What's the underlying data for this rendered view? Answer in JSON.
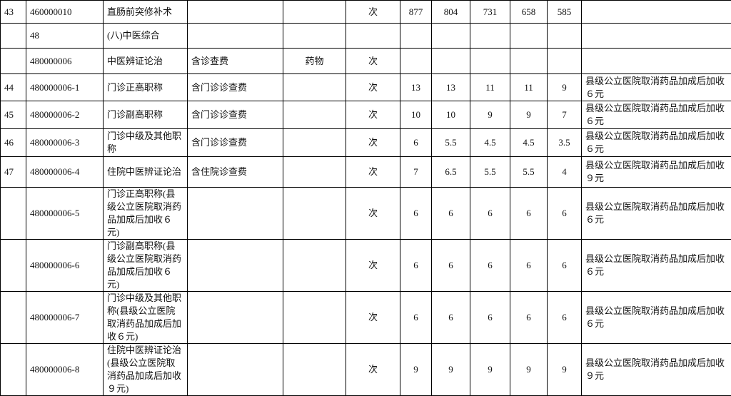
{
  "table": {
    "rows": [
      [
        "43",
        "460000010",
        "直肠前突修补术",
        null,
        null,
        "次",
        877,
        804,
        731,
        658,
        585,
        null
      ],
      [
        null,
        "48",
        "(八)中医综合",
        null,
        null,
        null,
        null,
        null,
        null,
        null,
        null,
        null
      ],
      [
        null,
        "480000006",
        "中医辨证论治",
        "含诊查费",
        "药物",
        "次",
        null,
        null,
        null,
        null,
        null,
        null
      ],
      [
        "44",
        "480000006-1",
        "门诊正高职称",
        "含门诊诊查费",
        null,
        "次",
        13,
        13,
        11,
        11,
        9,
        "县级公立医院取消药品加成后加收６元"
      ],
      [
        "45",
        "480000006-2",
        "门诊副高职称",
        "含门诊诊查费",
        null,
        "次",
        10,
        10,
        9,
        9,
        7,
        "县级公立医院取消药品加成后加收６元"
      ],
      [
        "46",
        "480000006-3",
        "门诊中级及其他职称",
        "含门诊诊查费",
        null,
        "次",
        6,
        5.5,
        4.5,
        4.5,
        3.5,
        "县级公立医院取消药品加成后加收６元"
      ],
      [
        "47",
        "480000006-4",
        "住院中医辨证论治",
        "含住院诊查费",
        null,
        "次",
        7,
        6.5,
        5.5,
        5.5,
        4,
        "县级公立医院取消药品加成后加收９元"
      ],
      [
        null,
        "480000006-5",
        "门诊正高职称(县级公立医院取消药品加成后加收６元)",
        null,
        null,
        "次",
        6,
        6,
        6,
        6,
        6,
        "县级公立医院取消药品加成后加收６元"
      ],
      [
        null,
        "480000006-6",
        "门诊副高职称(县级公立医院取消药品加成后加收６元)",
        null,
        null,
        "次",
        6,
        6,
        6,
        6,
        6,
        "县级公立医院取消药品加成后加收６元"
      ],
      [
        null,
        "480000006-7",
        "门诊中级及其他职称(县级公立医院取消药品加成后加收６元)",
        null,
        null,
        "次",
        6,
        6,
        6,
        6,
        6,
        "县级公立医院取消药品加成后加收６元"
      ],
      [
        null,
        "480000006-8",
        "住院中医辨证论治(县级公立医院取消药品加成后加收９元)",
        null,
        null,
        "次",
        9,
        9,
        9,
        9,
        9,
        "县级公立医院取消药品加成后加收９元"
      ]
    ]
  }
}
